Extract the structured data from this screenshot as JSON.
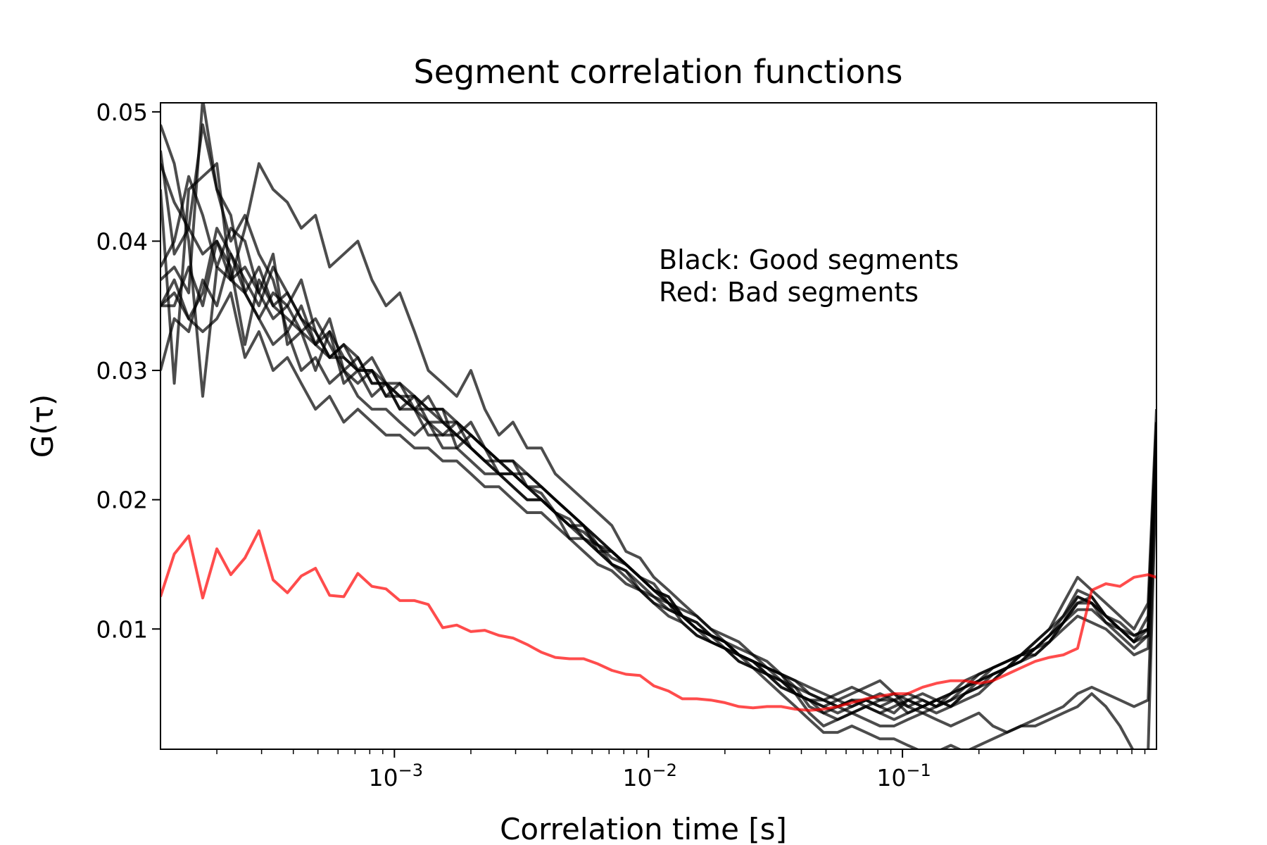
{
  "chart_data": {
    "type": "line",
    "title": "Segment correlation functions",
    "xlabel": "Correlation time [s]",
    "ylabel": "G(τ)",
    "xscale": "log",
    "xlim": [
      0.00012,
      1.0
    ],
    "ylim": [
      0.0007,
      0.0507
    ],
    "grid": false,
    "x_ticks": [
      {
        "value": 0.001,
        "base": "10",
        "exp": "−3"
      },
      {
        "value": 0.01,
        "base": "10",
        "exp": "−2"
      },
      {
        "value": 0.1,
        "base": "10",
        "exp": "−1"
      }
    ],
    "y_ticks": [
      {
        "value": 0.01,
        "label": "0.01"
      },
      {
        "value": 0.02,
        "label": "0.02"
      },
      {
        "value": 0.03,
        "label": "0.03"
      },
      {
        "value": 0.04,
        "label": "0.04"
      },
      {
        "value": 0.05,
        "label": "0.05"
      }
    ],
    "annotations": [
      "Black: Good segments",
      "Red: Bad segments"
    ],
    "colors": {
      "good": "#000000",
      "bad": "#ff0000"
    },
    "x": [
      0.00012,
      0.000136,
      0.000155,
      0.000176,
      0.0002,
      0.000227,
      0.000258,
      0.000293,
      0.000333,
      0.000379,
      0.00043,
      0.000489,
      0.000556,
      0.000632,
      0.000718,
      0.000816,
      0.000927,
      0.00105,
      0.0012,
      0.00136,
      0.00155,
      0.00176,
      0.002,
      0.00227,
      0.00258,
      0.00293,
      0.00333,
      0.00379,
      0.0043,
      0.00489,
      0.00556,
      0.00632,
      0.00718,
      0.00816,
      0.00927,
      0.0105,
      0.012,
      0.0136,
      0.0155,
      0.0176,
      0.02,
      0.0227,
      0.0258,
      0.0293,
      0.0333,
      0.0379,
      0.043,
      0.0489,
      0.0556,
      0.0632,
      0.0718,
      0.0816,
      0.0927,
      0.105,
      0.12,
      0.136,
      0.155,
      0.176,
      0.2,
      0.227,
      0.258,
      0.293,
      0.333,
      0.379,
      0.43,
      0.489,
      0.556,
      0.632,
      0.718,
      0.816,
      0.927,
      1.0
    ],
    "series": [
      {
        "group": "good",
        "values": [
          0.046,
          0.043,
          0.041,
          0.039,
          0.04,
          0.037,
          0.036,
          0.038,
          0.035,
          0.034,
          0.033,
          0.032,
          0.033,
          0.031,
          0.03,
          0.03,
          0.029,
          0.029,
          0.028,
          0.027,
          0.027,
          0.026,
          0.025,
          0.024,
          0.023,
          0.022,
          0.022,
          0.021,
          0.02,
          0.019,
          0.018,
          0.017,
          0.016,
          0.015,
          0.014,
          0.013,
          0.012,
          0.011,
          0.01,
          0.0095,
          0.009,
          0.008,
          0.0075,
          0.007,
          0.006,
          0.005,
          0.0045,
          0.004,
          0.0035,
          0.004,
          0.0045,
          0.005,
          0.0045,
          0.004,
          0.0045,
          0.004,
          0.0045,
          0.005,
          0.006,
          0.007,
          0.0075,
          0.008,
          0.009,
          0.01,
          0.012,
          0.014,
          0.013,
          0.012,
          0.011,
          0.01,
          0.012,
          0.027
        ]
      },
      {
        "group": "good",
        "values": [
          0.035,
          0.037,
          0.034,
          0.036,
          0.041,
          0.039,
          0.037,
          0.035,
          0.038,
          0.036,
          0.034,
          0.033,
          0.031,
          0.032,
          0.03,
          0.031,
          0.029,
          0.028,
          0.028,
          0.027,
          0.026,
          0.026,
          0.025,
          0.024,
          0.023,
          0.023,
          0.022,
          0.021,
          0.02,
          0.019,
          0.018,
          0.017,
          0.016,
          0.015,
          0.014,
          0.0135,
          0.012,
          0.0115,
          0.011,
          0.01,
          0.009,
          0.0085,
          0.008,
          0.007,
          0.0065,
          0.006,
          0.005,
          0.0045,
          0.004,
          0.0035,
          0.004,
          0.0035,
          0.004,
          0.0045,
          0.004,
          0.0035,
          0.004,
          0.0045,
          0.005,
          0.006,
          0.007,
          0.0075,
          0.0085,
          0.0095,
          0.011,
          0.013,
          0.0125,
          0.011,
          0.01,
          0.009,
          0.011,
          0.026
        ]
      },
      {
        "group": "good",
        "values": [
          0.038,
          0.04,
          0.045,
          0.042,
          0.038,
          0.041,
          0.04,
          0.036,
          0.034,
          0.035,
          0.037,
          0.033,
          0.031,
          0.032,
          0.031,
          0.029,
          0.029,
          0.028,
          0.027,
          0.028,
          0.026,
          0.025,
          0.026,
          0.024,
          0.023,
          0.023,
          0.021,
          0.021,
          0.02,
          0.019,
          0.018,
          0.0165,
          0.016,
          0.015,
          0.014,
          0.013,
          0.0125,
          0.011,
          0.01,
          0.0095,
          0.009,
          0.008,
          0.0075,
          0.007,
          0.0065,
          0.005,
          0.0045,
          0.0035,
          0.004,
          0.0045,
          0.004,
          0.0045,
          0.005,
          0.004,
          0.0035,
          0.004,
          0.005,
          0.0055,
          0.006,
          0.0065,
          0.007,
          0.008,
          0.009,
          0.01,
          0.011,
          0.0125,
          0.012,
          0.011,
          0.0105,
          0.0095,
          0.01,
          0.025
        ]
      },
      {
        "group": "good",
        "values": [
          0.03,
          0.034,
          0.033,
          0.037,
          0.035,
          0.039,
          0.036,
          0.034,
          0.032,
          0.033,
          0.03,
          0.031,
          0.029,
          0.03,
          0.028,
          0.027,
          0.027,
          0.026,
          0.025,
          0.026,
          0.024,
          0.024,
          0.023,
          0.022,
          0.022,
          0.021,
          0.02,
          0.02,
          0.019,
          0.018,
          0.017,
          0.016,
          0.015,
          0.014,
          0.013,
          0.012,
          0.0115,
          0.011,
          0.01,
          0.009,
          0.0085,
          0.008,
          0.007,
          0.0065,
          0.006,
          0.0055,
          0.004,
          0.0035,
          0.003,
          0.0035,
          0.004,
          0.0035,
          0.003,
          0.0035,
          0.004,
          0.0045,
          0.004,
          0.005,
          0.0055,
          0.006,
          0.007,
          0.0075,
          0.008,
          0.009,
          0.01,
          0.011,
          0.0105,
          0.01,
          0.009,
          0.008,
          0.0085,
          0.024
        ]
      },
      {
        "group": "good",
        "values": [
          0.044,
          0.029,
          0.044,
          0.045,
          0.046,
          0.037,
          0.038,
          0.036,
          0.039,
          0.032,
          0.033,
          0.03,
          0.033,
          0.029,
          0.03,
          0.028,
          0.029,
          0.027,
          0.027,
          0.025,
          0.025,
          0.026,
          0.024,
          0.023,
          0.022,
          0.021,
          0.02,
          0.02,
          0.019,
          0.017,
          0.017,
          0.016,
          0.015,
          0.0145,
          0.013,
          0.0125,
          0.012,
          0.0105,
          0.0095,
          0.009,
          0.0085,
          0.0075,
          0.007,
          0.0065,
          0.0055,
          0.005,
          0.0045,
          0.0045,
          0.005,
          0.0055,
          0.005,
          0.0045,
          0.0045,
          0.0035,
          0.004,
          0.0045,
          0.005,
          0.0055,
          0.0065,
          0.007,
          0.0075,
          0.008,
          0.0085,
          0.0095,
          0.0105,
          0.012,
          0.012,
          0.0105,
          0.01,
          0.009,
          0.0095,
          0.025
        ]
      },
      {
        "group": "good",
        "values": [
          0.049,
          0.046,
          0.04,
          0.028,
          0.038,
          0.037,
          0.041,
          0.046,
          0.044,
          0.043,
          0.041,
          0.042,
          0.038,
          0.039,
          0.04,
          0.037,
          0.035,
          0.036,
          0.033,
          0.03,
          0.029,
          0.028,
          0.03,
          0.027,
          0.025,
          0.026,
          0.024,
          0.024,
          0.022,
          0.021,
          0.02,
          0.019,
          0.018,
          0.016,
          0.0155,
          0.014,
          0.013,
          0.012,
          0.011,
          0.01,
          0.0095,
          0.009,
          0.008,
          0.0075,
          0.0065,
          0.006,
          0.0055,
          0.005,
          0.0045,
          0.005,
          0.0055,
          0.006,
          0.005,
          0.0045,
          0.004,
          0.0045,
          0.005,
          0.006,
          0.0065,
          0.007,
          0.0075,
          0.008,
          0.0085,
          0.0095,
          0.0105,
          0.012,
          0.0125,
          0.011,
          0.01,
          0.0095,
          0.01,
          0.026
        ]
      },
      {
        "group": "good",
        "values": [
          0.037,
          0.038,
          0.036,
          0.051,
          0.044,
          0.04,
          0.042,
          0.039,
          0.037,
          0.033,
          0.035,
          0.032,
          0.031,
          0.031,
          0.03,
          0.03,
          0.028,
          0.029,
          0.027,
          0.027,
          0.027,
          0.024,
          0.025,
          0.024,
          0.022,
          0.022,
          0.021,
          0.02,
          0.019,
          0.018,
          0.018,
          0.016,
          0.016,
          0.015,
          0.014,
          0.013,
          0.0125,
          0.011,
          0.0105,
          0.0095,
          0.009,
          0.008,
          0.0075,
          0.0065,
          0.006,
          0.005,
          0.0045,
          0.004,
          0.0045,
          0.004,
          0.0045,
          0.004,
          0.0045,
          0.005,
          0.0045,
          0.004,
          0.0045,
          0.0055,
          0.006,
          0.0065,
          0.007,
          0.0075,
          0.0085,
          0.009,
          0.0105,
          0.0115,
          0.0115,
          0.0105,
          0.0095,
          0.0085,
          0.0095,
          0.025
        ]
      },
      {
        "group": "good",
        "values": [
          0.047,
          0.039,
          0.041,
          0.049,
          0.044,
          0.042,
          0.036,
          0.034,
          0.036,
          0.035,
          0.033,
          0.034,
          0.032,
          0.03,
          0.031,
          0.029,
          0.029,
          0.027,
          0.028,
          0.026,
          0.026,
          0.025,
          0.024,
          0.023,
          0.023,
          0.022,
          0.021,
          0.02,
          0.019,
          0.018,
          0.0175,
          0.0165,
          0.0155,
          0.015,
          0.014,
          0.013,
          0.012,
          0.011,
          0.0105,
          0.0095,
          0.009,
          0.008,
          0.0075,
          0.007,
          0.0065,
          0.0055,
          0.005,
          0.0045,
          0.004,
          0.0045,
          0.0045,
          0.004,
          0.0035,
          0.0045,
          0.005,
          0.0045,
          0.004,
          0.005,
          0.0055,
          0.0065,
          0.007,
          0.008,
          0.008,
          0.009,
          0.0105,
          0.0125,
          0.012,
          0.011,
          0.01,
          0.009,
          0.01,
          0.025
        ]
      },
      {
        "group": "good",
        "values": [
          0.035,
          0.035,
          0.038,
          0.035,
          0.04,
          0.038,
          0.032,
          0.037,
          0.035,
          0.036,
          0.034,
          0.032,
          0.034,
          0.03,
          0.029,
          0.03,
          0.028,
          0.028,
          0.027,
          0.026,
          0.025,
          0.025,
          0.024,
          0.023,
          0.022,
          0.022,
          0.021,
          0.0205,
          0.019,
          0.0185,
          0.017,
          0.0165,
          0.015,
          0.0145,
          0.0135,
          0.0125,
          0.0115,
          0.011,
          0.01,
          0.0095,
          0.0085,
          0.008,
          0.0075,
          0.0065,
          0.0055,
          0.005,
          0.0035,
          0.0025,
          0.003,
          0.0035,
          0.003,
          0.0025,
          0.0025,
          0.003,
          0.0035,
          0.003,
          0.0025,
          0.003,
          0.0035,
          0.0025,
          0.002,
          0.0025,
          0.003,
          0.0035,
          0.004,
          0.005,
          0.0055,
          0.005,
          0.0045,
          0.004,
          0.0045,
          0.023
        ]
      },
      {
        "group": "good",
        "values": [
          0.035,
          0.036,
          0.034,
          0.033,
          0.034,
          0.036,
          0.031,
          0.033,
          0.03,
          0.031,
          0.029,
          0.027,
          0.028,
          0.026,
          0.027,
          0.026,
          0.025,
          0.025,
          0.024,
          0.024,
          0.023,
          0.023,
          0.022,
          0.021,
          0.021,
          0.02,
          0.019,
          0.019,
          0.018,
          0.017,
          0.016,
          0.015,
          0.0145,
          0.0135,
          0.013,
          0.012,
          0.011,
          0.0105,
          0.0095,
          0.009,
          0.0085,
          0.0075,
          0.007,
          0.006,
          0.005,
          0.004,
          0.003,
          0.002,
          0.002,
          0.0025,
          0.002,
          0.0015,
          0.0015,
          0.001,
          0.0005,
          0.0005,
          0.001,
          0.0005,
          0.001,
          0.0015,
          0.002,
          0.0025,
          0.0025,
          0.003,
          0.0035,
          0.004,
          0.005,
          0.004,
          0.0025,
          0.0005,
          0.0005,
          0.023
        ]
      },
      {
        "group": "bad",
        "values": [
          0.0125,
          0.0158,
          0.0172,
          0.0124,
          0.0162,
          0.0142,
          0.0155,
          0.0176,
          0.0138,
          0.0128,
          0.0141,
          0.0147,
          0.0126,
          0.0125,
          0.0143,
          0.0133,
          0.0131,
          0.0122,
          0.0122,
          0.0119,
          0.0101,
          0.0103,
          0.0098,
          0.0099,
          0.0095,
          0.0093,
          0.0088,
          0.0082,
          0.0078,
          0.0077,
          0.0077,
          0.0073,
          0.0068,
          0.0065,
          0.0064,
          0.0056,
          0.0052,
          0.0046,
          0.0046,
          0.0045,
          0.0043,
          0.004,
          0.0039,
          0.004,
          0.004,
          0.0038,
          0.0037,
          0.0038,
          0.004,
          0.0043,
          0.0046,
          0.0048,
          0.005,
          0.005,
          0.0055,
          0.0058,
          0.006,
          0.006,
          0.0058,
          0.006,
          0.0065,
          0.007,
          0.0075,
          0.0078,
          0.008,
          0.0085,
          0.013,
          0.0135,
          0.0133,
          0.014,
          0.0142,
          0.014
        ]
      }
    ]
  }
}
